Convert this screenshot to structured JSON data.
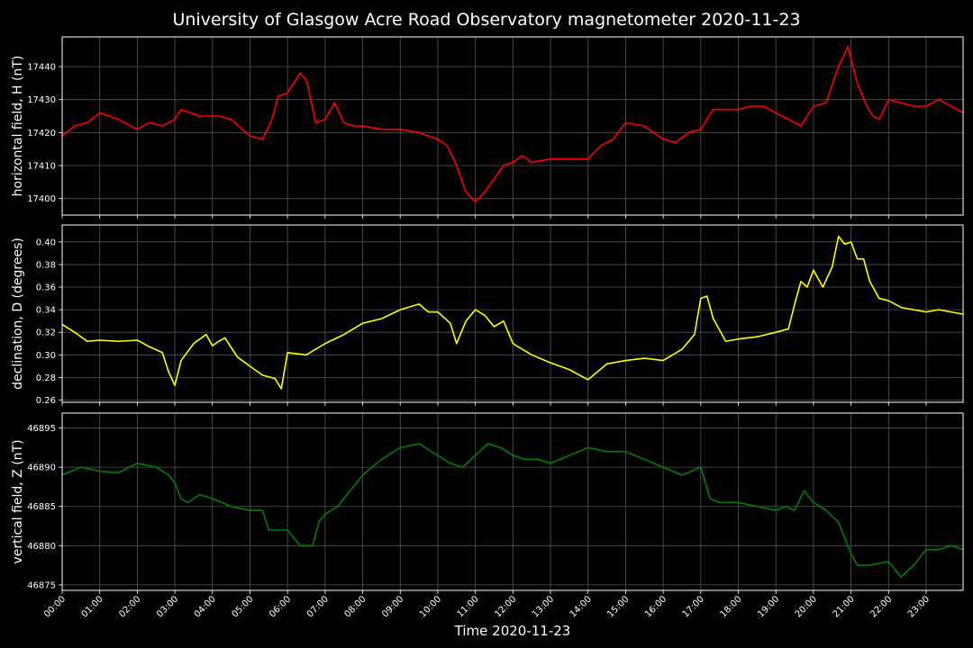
{
  "chart_data": {
    "type": "line",
    "title": "University of Glasgow Acre Road Observatory magnetometer 2020-11-23",
    "xlabel": "Time 2020-11-23",
    "x_ticks": [
      "00:00",
      "01:00",
      "02:00",
      "03:00",
      "04:00",
      "05:00",
      "06:00",
      "07:00",
      "08:00",
      "09:00",
      "10:00",
      "11:00",
      "12:00",
      "13:00",
      "14:00",
      "15:00",
      "16:00",
      "17:00",
      "18:00",
      "19:00",
      "20:00",
      "21:00",
      "22:00",
      "23:00"
    ],
    "xlim": [
      "00:00",
      "23:59"
    ],
    "grid": true,
    "panels": [
      {
        "ylabel": "horizontal field, H (nT)",
        "color": "#ff0000",
        "ylim": [
          17395,
          17449
        ],
        "yticks": [
          "17400",
          "17410",
          "17420",
          "17430",
          "17440"
        ],
        "series": {
          "x": [
            "00:00",
            "00:20",
            "00:40",
            "01:00",
            "01:30",
            "02:00",
            "02:20",
            "02:40",
            "03:00",
            "03:10",
            "03:40",
            "04:10",
            "04:30",
            "05:00",
            "05:20",
            "05:35",
            "05:45",
            "06:00",
            "06:20",
            "06:30",
            "06:45",
            "07:00",
            "07:15",
            "07:30",
            "07:45",
            "08:00",
            "08:30",
            "09:00",
            "09:30",
            "10:00",
            "10:15",
            "10:30",
            "10:45",
            "11:00",
            "11:15",
            "11:30",
            "11:45",
            "12:00",
            "12:15",
            "12:30",
            "13:00",
            "13:30",
            "14:00",
            "14:20",
            "14:40",
            "15:00",
            "15:30",
            "16:00",
            "16:20",
            "16:40",
            "17:00",
            "17:20",
            "17:40",
            "18:00",
            "18:20",
            "18:40",
            "19:00",
            "19:20",
            "19:40",
            "20:00",
            "20:20",
            "20:40",
            "20:55",
            "21:10",
            "21:25",
            "21:35",
            "21:45",
            "22:00",
            "22:20",
            "22:40",
            "23:00",
            "23:20",
            "23:40",
            "23:59"
          ],
          "y": [
            17419,
            17422,
            17423,
            17426,
            17424,
            17421,
            17423,
            17422,
            17424,
            17427,
            17425,
            17425,
            17424,
            17419,
            17418,
            17424,
            17431,
            17432,
            17438,
            17436,
            17423,
            17424,
            17429,
            17423,
            17422,
            17422,
            17421,
            17421,
            17420,
            17418,
            17416,
            17410,
            17402,
            17399,
            17402,
            17406,
            17410,
            17411,
            17413,
            17411,
            17412,
            17412,
            17412,
            17416,
            17418,
            17423,
            17422,
            17418,
            17417,
            17420,
            17421,
            17427,
            17427,
            17427,
            17428,
            17428,
            17426,
            17424,
            17422,
            17428,
            17429,
            17440,
            17446,
            17435,
            17428,
            17425,
            17424,
            17430,
            17429,
            17428,
            17428,
            17430,
            17428,
            17426
          ]
        }
      },
      {
        "ylabel": "declination, D (degrees)",
        "color": "#ffff00",
        "ylim": [
          0.258,
          0.415
        ],
        "yticks": [
          "0.26",
          "0.28",
          "0.30",
          "0.32",
          "0.34",
          "0.36",
          "0.38",
          "0.40"
        ],
        "series": {
          "x": [
            "00:00",
            "00:20",
            "00:40",
            "01:00",
            "01:30",
            "02:00",
            "02:20",
            "02:40",
            "02:50",
            "03:00",
            "03:10",
            "03:30",
            "03:50",
            "04:00",
            "04:10",
            "04:20",
            "04:40",
            "05:00",
            "05:20",
            "05:40",
            "05:50",
            "06:00",
            "06:30",
            "07:00",
            "07:30",
            "08:00",
            "08:30",
            "09:00",
            "09:30",
            "09:45",
            "10:00",
            "10:20",
            "10:30",
            "10:45",
            "11:00",
            "11:15",
            "11:30",
            "11:45",
            "12:00",
            "12:15",
            "12:30",
            "13:00",
            "13:30",
            "14:00",
            "14:30",
            "15:00",
            "15:30",
            "16:00",
            "16:30",
            "16:50",
            "17:00",
            "17:10",
            "17:20",
            "17:40",
            "18:00",
            "18:30",
            "19:00",
            "19:20",
            "19:30",
            "19:40",
            "19:50",
            "20:00",
            "20:15",
            "20:30",
            "20:40",
            "20:50",
            "21:00",
            "21:10",
            "21:20",
            "21:30",
            "21:45",
            "22:00",
            "22:20",
            "22:40",
            "23:00",
            "23:20",
            "23:40",
            "23:59"
          ],
          "y": [
            0.327,
            0.32,
            0.312,
            0.313,
            0.312,
            0.313,
            0.307,
            0.302,
            0.285,
            0.273,
            0.295,
            0.31,
            0.318,
            0.308,
            0.312,
            0.315,
            0.298,
            0.29,
            0.282,
            0.279,
            0.27,
            0.302,
            0.3,
            0.31,
            0.318,
            0.328,
            0.332,
            0.34,
            0.345,
            0.338,
            0.338,
            0.328,
            0.31,
            0.33,
            0.34,
            0.335,
            0.325,
            0.33,
            0.31,
            0.305,
            0.3,
            0.293,
            0.287,
            0.278,
            0.292,
            0.295,
            0.297,
            0.295,
            0.305,
            0.318,
            0.35,
            0.352,
            0.332,
            0.312,
            0.314,
            0.316,
            0.32,
            0.323,
            0.345,
            0.365,
            0.36,
            0.375,
            0.36,
            0.378,
            0.405,
            0.398,
            0.4,
            0.385,
            0.385,
            0.365,
            0.35,
            0.348,
            0.342,
            0.34,
            0.338,
            0.34,
            0.338,
            0.336
          ]
        }
      },
      {
        "ylabel": "vertical field, Z (nT)",
        "color": "#008000",
        "ylim": [
          46874.3,
          46896.9
        ],
        "yticks": [
          "46875",
          "46880",
          "46885",
          "46890",
          "46895"
        ],
        "series": {
          "x": [
            "00:00",
            "00:30",
            "01:00",
            "01:30",
            "02:00",
            "02:30",
            "02:50",
            "03:00",
            "03:10",
            "03:20",
            "03:40",
            "04:00",
            "04:30",
            "05:00",
            "05:20",
            "05:30",
            "05:40",
            "06:00",
            "06:20",
            "06:40",
            "06:50",
            "07:00",
            "07:20",
            "07:40",
            "08:00",
            "08:30",
            "09:00",
            "09:30",
            "10:00",
            "10:20",
            "10:40",
            "11:00",
            "11:20",
            "11:40",
            "12:00",
            "12:20",
            "12:40",
            "13:00",
            "13:30",
            "14:00",
            "14:30",
            "15:00",
            "15:30",
            "16:00",
            "16:30",
            "17:00",
            "17:15",
            "17:30",
            "18:00",
            "18:30",
            "19:00",
            "19:15",
            "19:30",
            "19:45",
            "20:00",
            "20:20",
            "20:40",
            "21:00",
            "21:10",
            "21:30",
            "22:00",
            "22:20",
            "22:40",
            "23:00",
            "23:20",
            "23:40",
            "23:59"
          ],
          "y": [
            46889,
            46890,
            46889.5,
            46889.3,
            46890.5,
            46890,
            46889,
            46888,
            46886,
            46885.5,
            46886.5,
            46886,
            46885,
            46884.5,
            46884.5,
            46882,
            46882,
            46882,
            46880,
            46880,
            46883,
            46884,
            46885,
            46887,
            46889,
            46891,
            46892.5,
            46893,
            46891.5,
            46890.5,
            46890,
            46891.5,
            46893,
            46892.5,
            46891.5,
            46891,
            46891,
            46890.5,
            46891.5,
            46892.5,
            46892,
            46892,
            46891,
            46890,
            46889,
            46890,
            46886,
            46885.5,
            46885.5,
            46885,
            46884.5,
            46885,
            46884.5,
            46887,
            46885.5,
            46884.5,
            46883,
            46879,
            46877.5,
            46877.5,
            46878,
            46876,
            46877.5,
            46879.5,
            46879.5,
            46880,
            46879.5
          ]
        }
      }
    ]
  }
}
